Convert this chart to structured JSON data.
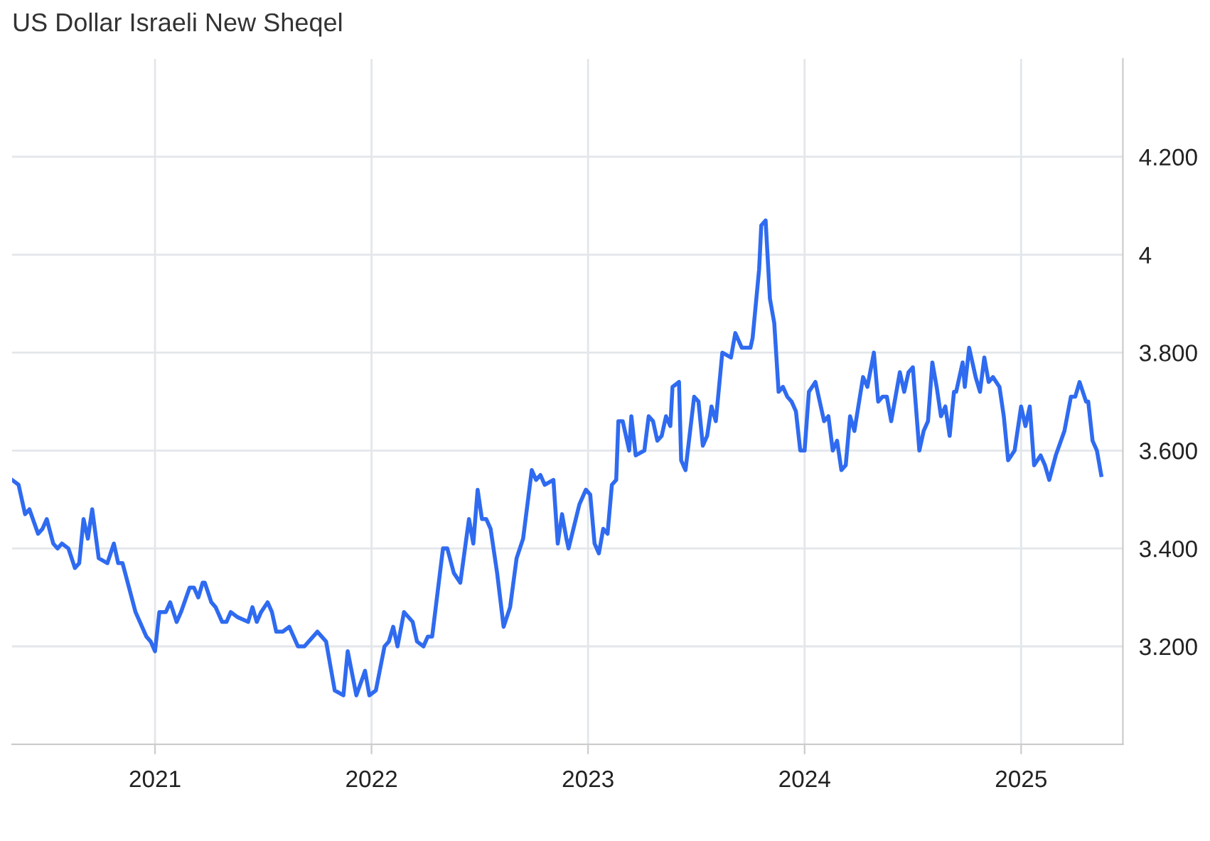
{
  "chart_data": {
    "type": "line",
    "title": "US Dollar Israeli New Sheqel",
    "x": [
      2020.34,
      2020.37,
      2020.38,
      2020.4,
      2020.42,
      2020.46,
      2020.48,
      2020.5,
      2020.53,
      2020.55,
      2020.57,
      2020.6,
      2020.63,
      2020.65,
      2020.67,
      2020.69,
      2020.71,
      2020.74,
      2020.78,
      2020.81,
      2020.83,
      2020.85,
      2020.88,
      2020.91,
      2020.96,
      2020.98,
      2021.0,
      2021.02,
      2021.05,
      2021.07,
      2021.1,
      2021.12,
      2021.16,
      2021.18,
      2021.2,
      2021.22,
      2021.23,
      2021.26,
      2021.28,
      2021.31,
      2021.33,
      2021.35,
      2021.38,
      2021.43,
      2021.45,
      2021.47,
      2021.49,
      2021.52,
      2021.54,
      2021.56,
      2021.59,
      2021.62,
      2021.66,
      2021.69,
      2021.71,
      2021.75,
      2021.79,
      2021.83,
      2021.87,
      2021.89,
      2021.93,
      2021.97,
      2021.99,
      2022.02,
      2022.06,
      2022.08,
      2022.1,
      2022.12,
      2022.15,
      2022.19,
      2022.21,
      2022.24,
      2022.26,
      2022.28,
      2022.33,
      2022.35,
      2022.38,
      2022.41,
      2022.45,
      2022.47,
      2022.49,
      2022.51,
      2022.53,
      2022.55,
      2022.58,
      2022.61,
      2022.64,
      2022.67,
      2022.7,
      2022.74,
      2022.76,
      2022.78,
      2022.8,
      2022.84,
      2022.86,
      2022.88,
      2022.9,
      2022.91,
      2022.96,
      2022.99,
      2023.01,
      2023.03,
      2023.05,
      2023.07,
      2023.09,
      2023.11,
      2023.13,
      2023.14,
      2023.16,
      2023.19,
      2023.2,
      2023.22,
      2023.26,
      2023.28,
      2023.3,
      2023.32,
      2023.34,
      2023.36,
      2023.38,
      2023.39,
      2023.42,
      2023.43,
      2023.45,
      2023.49,
      2023.51,
      2023.53,
      2023.55,
      2023.57,
      2023.59,
      2023.62,
      2023.66,
      2023.68,
      2023.71,
      2023.75,
      2023.76,
      2023.79,
      2023.8,
      2023.82,
      2023.84,
      2023.86,
      2023.88,
      2023.9,
      2023.92,
      2023.94,
      2023.96,
      2023.98,
      2024.0,
      2024.02,
      2024.05,
      2024.08,
      2024.09,
      2024.11,
      2024.13,
      2024.15,
      2024.17,
      2024.19,
      2024.21,
      2024.23,
      2024.27,
      2024.29,
      2024.32,
      2024.34,
      2024.36,
      2024.38,
      2024.4,
      2024.44,
      2024.46,
      2024.48,
      2024.5,
      2024.53,
      2024.55,
      2024.57,
      2024.59,
      2024.61,
      2024.63,
      2024.65,
      2024.67,
      2024.69,
      2024.7,
      2024.73,
      2024.74,
      2024.76,
      2024.79,
      2024.81,
      2024.83,
      2024.85,
      2024.87,
      2024.9,
      2024.92,
      2024.94,
      2024.97,
      2025.0,
      2025.02,
      2025.04,
      2025.06,
      2025.09,
      2025.11,
      2025.13,
      2025.16,
      2025.2,
      2025.23,
      2025.25,
      2025.27,
      2025.3,
      2025.31,
      2025.33,
      2025.35,
      2025.37
    ],
    "series": [
      {
        "color": "#2f6bf0",
        "values": [
          3.54,
          3.53,
          3.51,
          3.47,
          3.48,
          3.43,
          3.44,
          3.46,
          3.41,
          3.4,
          3.41,
          3.4,
          3.36,
          3.37,
          3.46,
          3.42,
          3.48,
          3.38,
          3.37,
          3.41,
          3.37,
          3.37,
          3.32,
          3.27,
          3.22,
          3.21,
          3.19,
          3.27,
          3.27,
          3.29,
          3.25,
          3.27,
          3.32,
          3.32,
          3.3,
          3.33,
          3.33,
          3.29,
          3.28,
          3.25,
          3.25,
          3.27,
          3.26,
          3.25,
          3.28,
          3.25,
          3.27,
          3.29,
          3.27,
          3.23,
          3.23,
          3.24,
          3.2,
          3.2,
          3.21,
          3.23,
          3.21,
          3.11,
          3.1,
          3.19,
          3.1,
          3.15,
          3.1,
          3.11,
          3.2,
          3.21,
          3.24,
          3.2,
          3.27,
          3.25,
          3.21,
          3.2,
          3.22,
          3.22,
          3.4,
          3.4,
          3.35,
          3.33,
          3.46,
          3.41,
          3.52,
          3.46,
          3.46,
          3.44,
          3.35,
          3.24,
          3.28,
          3.38,
          3.42,
          3.56,
          3.54,
          3.55,
          3.53,
          3.54,
          3.41,
          3.47,
          3.42,
          3.4,
          3.49,
          3.52,
          3.51,
          3.41,
          3.39,
          3.44,
          3.43,
          3.53,
          3.54,
          3.66,
          3.66,
          3.6,
          3.67,
          3.59,
          3.6,
          3.67,
          3.66,
          3.62,
          3.63,
          3.67,
          3.65,
          3.73,
          3.74,
          3.58,
          3.56,
          3.71,
          3.7,
          3.61,
          3.63,
          3.69,
          3.66,
          3.8,
          3.79,
          3.84,
          3.81,
          3.81,
          3.83,
          3.97,
          4.06,
          4.07,
          3.91,
          3.86,
          3.72,
          3.73,
          3.71,
          3.7,
          3.68,
          3.6,
          3.6,
          3.72,
          3.74,
          3.68,
          3.66,
          3.67,
          3.6,
          3.62,
          3.56,
          3.57,
          3.67,
          3.64,
          3.75,
          3.73,
          3.8,
          3.7,
          3.71,
          3.71,
          3.66,
          3.76,
          3.72,
          3.76,
          3.77,
          3.6,
          3.64,
          3.66,
          3.78,
          3.73,
          3.67,
          3.69,
          3.63,
          3.72,
          3.72,
          3.78,
          3.73,
          3.81,
          3.75,
          3.72,
          3.79,
          3.74,
          3.75,
          3.73,
          3.67,
          3.58,
          3.6,
          3.69,
          3.65,
          3.69,
          3.57,
          3.59,
          3.57,
          3.54,
          3.59,
          3.64,
          3.71,
          3.71,
          3.74,
          3.7,
          3.7,
          3.62,
          3.6,
          3.55
        ]
      }
    ],
    "xlim": [
      2020.34,
      2025.47
    ],
    "xticks": [
      2021,
      2022,
      2023,
      2024,
      2025
    ],
    "ylim": [
      3.0,
      4.4
    ],
    "yticks": [
      {
        "value": 3.2,
        "label": "3.200"
      },
      {
        "value": 3.4,
        "label": "3.400"
      },
      {
        "value": 3.6,
        "label": "3.600"
      },
      {
        "value": 3.8,
        "label": "3.800"
      },
      {
        "value": 4,
        "label": "4"
      },
      {
        "value": 4.2,
        "label": "4.200"
      }
    ],
    "grid": true,
    "legend": false,
    "marker": "none",
    "line_style": "solid"
  }
}
